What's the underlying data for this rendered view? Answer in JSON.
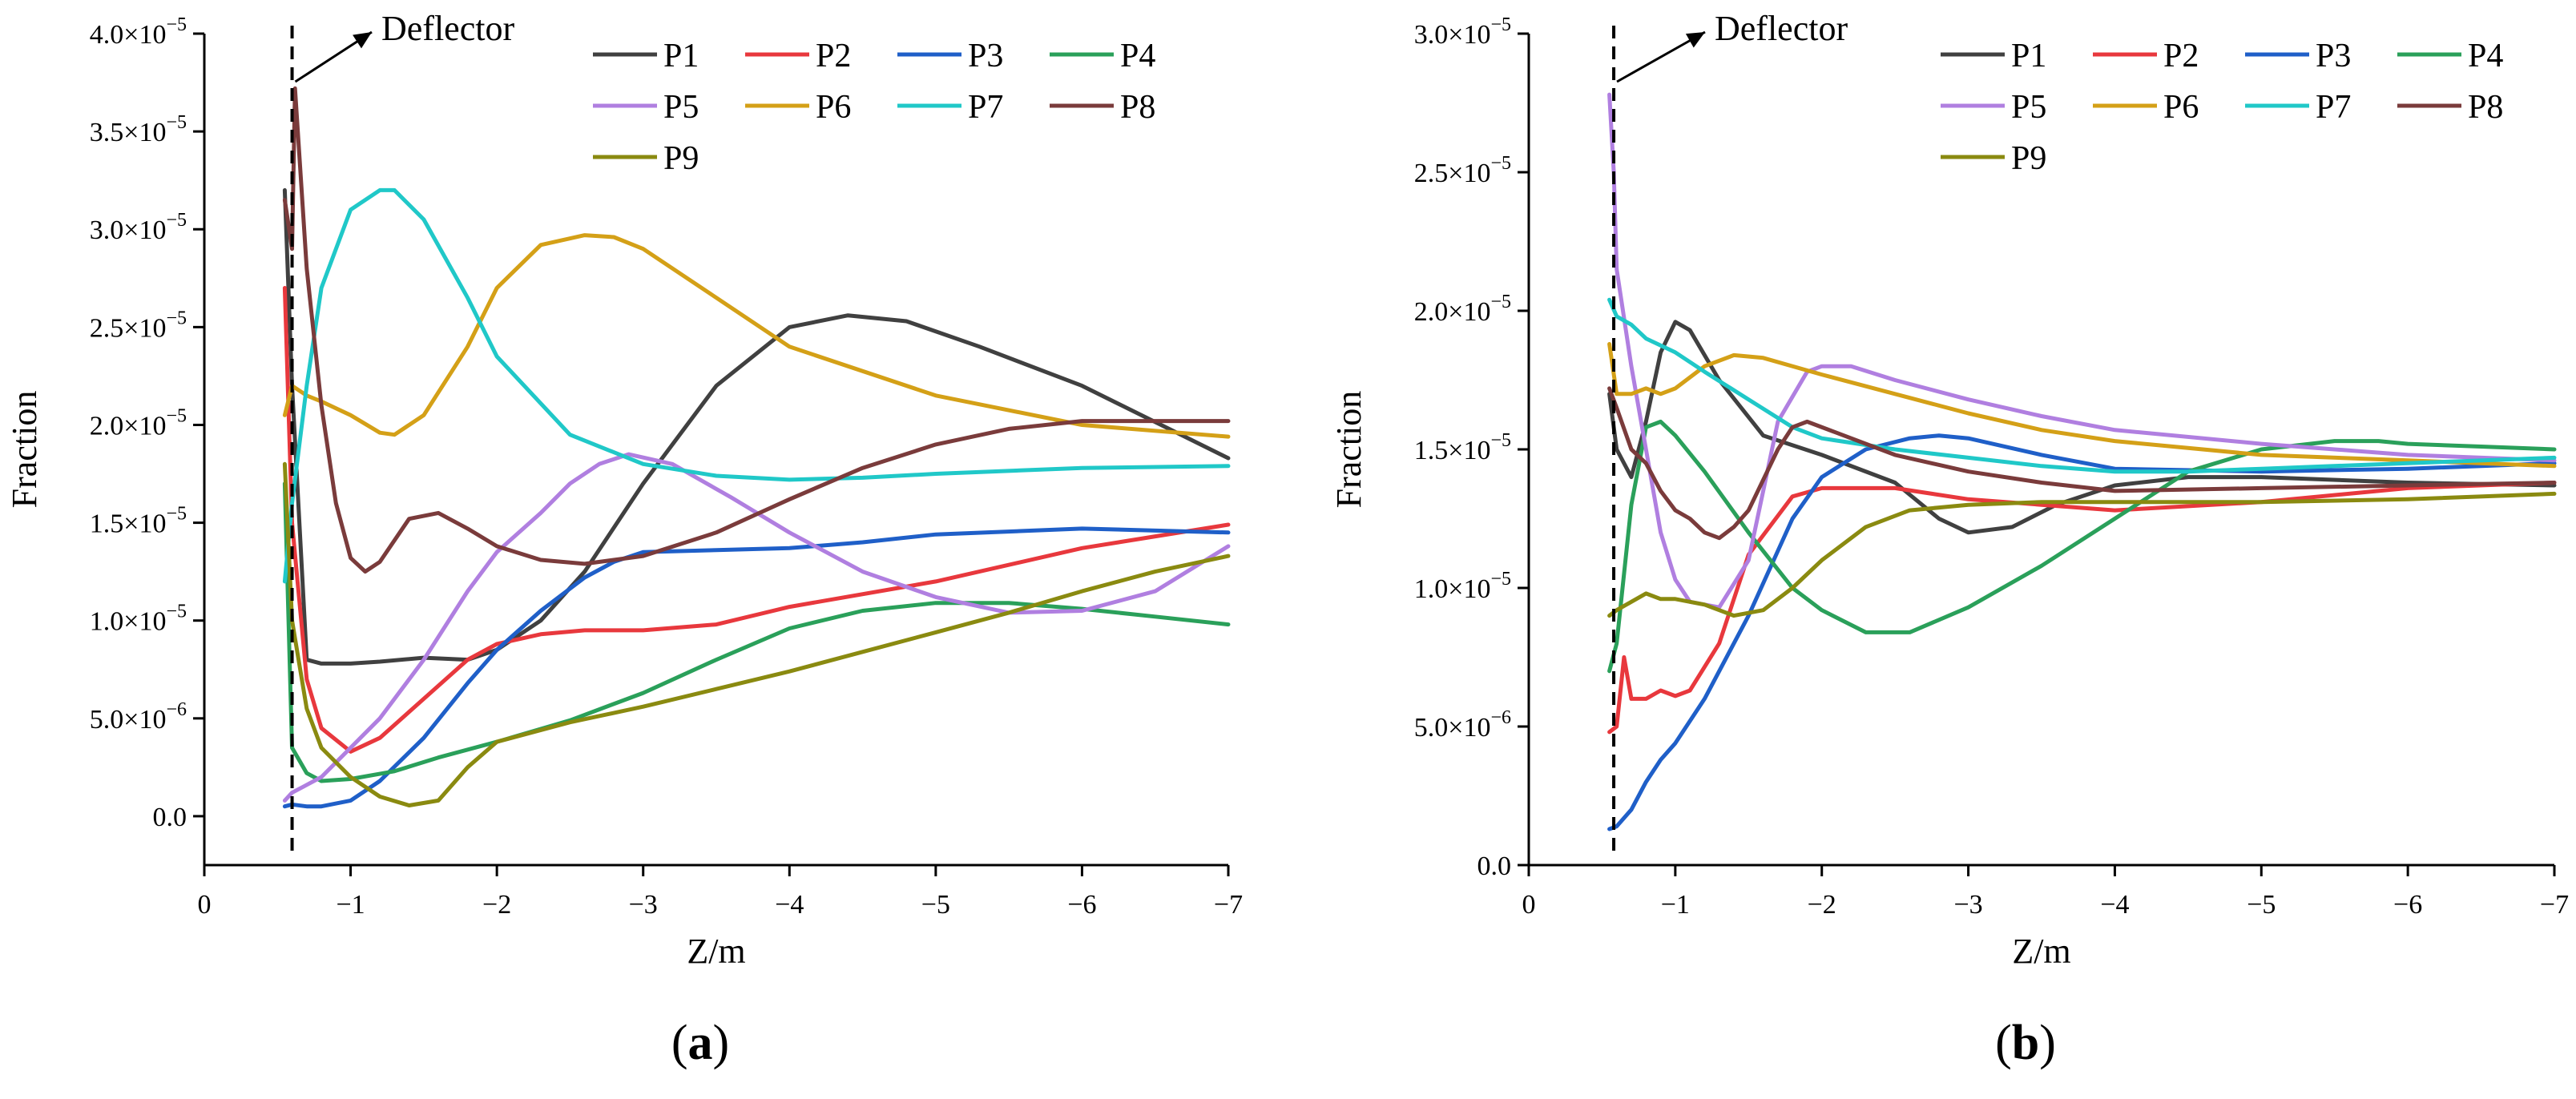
{
  "chart_data": [
    {
      "type": "line",
      "panel_label": {
        "open": "(",
        "letter": "a",
        "close": ")"
      },
      "xlabel": "Z/m",
      "ylabel": "Fraction",
      "xlim": [
        0,
        -7
      ],
      "ylim": [
        -2.5e-06,
        4e-05
      ],
      "x_ticks": [
        0,
        -1,
        -2,
        -3,
        -4,
        -5,
        -6,
        -7
      ],
      "x_tick_labels": [
        "0",
        "−1",
        "−2",
        "−3",
        "−4",
        "−5",
        "−6",
        "−7"
      ],
      "y_ticks": [
        0,
        5e-06,
        1e-05,
        1.5e-05,
        2e-05,
        2.5e-05,
        3e-05,
        3.5e-05,
        4e-05
      ],
      "y_tick_labels": [
        {
          "mant": "0.0",
          "exp": ""
        },
        {
          "mant": "5.0×10",
          "exp": "−6"
        },
        {
          "mant": "1.0×10",
          "exp": "−5"
        },
        {
          "mant": "1.5×10",
          "exp": "−5"
        },
        {
          "mant": "2.0×10",
          "exp": "−5"
        },
        {
          "mant": "2.5×10",
          "exp": "−5"
        },
        {
          "mant": "3.0×10",
          "exp": "−5"
        },
        {
          "mant": "3.5×10",
          "exp": "−5"
        },
        {
          "mant": "4.0×10",
          "exp": "−5"
        }
      ],
      "annotation": {
        "text": "Deflector",
        "x": -0.6
      },
      "legend": "top-right",
      "series": [
        {
          "name": "P1",
          "color": "#404040",
          "x": [
            -0.55,
            -0.6,
            -0.7,
            -0.8,
            -1.0,
            -1.2,
            -1.5,
            -1.8,
            -2.0,
            -2.3,
            -2.6,
            -3.0,
            -3.5,
            -4.0,
            -4.4,
            -4.8,
            -5.3,
            -6.0,
            -7.0
          ],
          "y": [
            3.2e-05,
            2.2e-05,
            8e-06,
            7.8e-06,
            7.8e-06,
            7.9e-06,
            8.1e-06,
            8e-06,
            8.5e-06,
            1e-05,
            1.25e-05,
            1.7e-05,
            2.2e-05,
            2.5e-05,
            2.56e-05,
            2.53e-05,
            2.4e-05,
            2.2e-05,
            1.83e-05
          ]
        },
        {
          "name": "P2",
          "color": "#e8383d",
          "x": [
            -0.55,
            -0.6,
            -0.7,
            -0.8,
            -1.0,
            -1.2,
            -1.5,
            -1.8,
            -2.0,
            -2.3,
            -2.6,
            -3.0,
            -3.5,
            -4.0,
            -5.0,
            -6.0,
            -7.0
          ],
          "y": [
            2.7e-05,
            1.5e-05,
            7e-06,
            4.5e-06,
            3.3e-06,
            4e-06,
            6e-06,
            8e-06,
            8.8e-06,
            9.3e-06,
            9.5e-06,
            9.5e-06,
            9.8e-06,
            1.07e-05,
            1.2e-05,
            1.37e-05,
            1.49e-05
          ]
        },
        {
          "name": "P3",
          "color": "#1f5fc8",
          "x": [
            -0.55,
            -0.6,
            -0.7,
            -0.8,
            -1.0,
            -1.2,
            -1.5,
            -1.8,
            -2.0,
            -2.3,
            -2.6,
            -2.8,
            -3.0,
            -3.5,
            -4.0,
            -4.5,
            -5.0,
            -6.0,
            -7.0
          ],
          "y": [
            5e-07,
            6e-07,
            5e-07,
            5e-07,
            8e-07,
            1.8e-06,
            4e-06,
            6.8e-06,
            8.5e-06,
            1.05e-05,
            1.22e-05,
            1.3e-05,
            1.35e-05,
            1.36e-05,
            1.37e-05,
            1.4e-05,
            1.44e-05,
            1.47e-05,
            1.45e-05
          ]
        },
        {
          "name": "P4",
          "color": "#2aa05a",
          "x": [
            -0.55,
            -0.6,
            -0.7,
            -0.8,
            -1.0,
            -1.3,
            -1.6,
            -2.0,
            -2.5,
            -3.0,
            -3.5,
            -4.0,
            -4.5,
            -5.0,
            -5.5,
            -6.0,
            -6.5,
            -7.0
          ],
          "y": [
            1.7e-05,
            3.5e-06,
            2.2e-06,
            1.8e-06,
            1.9e-06,
            2.3e-06,
            3e-06,
            3.8e-06,
            4.9e-06,
            6.3e-06,
            8e-06,
            9.6e-06,
            1.05e-05,
            1.09e-05,
            1.09e-05,
            1.06e-05,
            1.02e-05,
            9.8e-06
          ]
        },
        {
          "name": "P5",
          "color": "#b07fe0",
          "x": [
            -0.55,
            -0.6,
            -0.8,
            -1.0,
            -1.2,
            -1.5,
            -1.8,
            -2.0,
            -2.3,
            -2.5,
            -2.7,
            -2.9,
            -3.2,
            -3.6,
            -4.0,
            -4.5,
            -5.0,
            -5.5,
            -6.0,
            -6.5,
            -7.0
          ],
          "y": [
            8e-07,
            1.2e-06,
            2e-06,
            3.5e-06,
            5e-06,
            8e-06,
            1.15e-05,
            1.35e-05,
            1.55e-05,
            1.7e-05,
            1.8e-05,
            1.85e-05,
            1.8e-05,
            1.63e-05,
            1.45e-05,
            1.25e-05,
            1.12e-05,
            1.04e-05,
            1.05e-05,
            1.15e-05,
            1.38e-05
          ]
        },
        {
          "name": "P6",
          "color": "#d4a017",
          "x": [
            -0.55,
            -0.6,
            -0.7,
            -0.8,
            -1.0,
            -1.2,
            -1.3,
            -1.5,
            -1.8,
            -2.0,
            -2.3,
            -2.6,
            -2.8,
            -3.0,
            -3.5,
            -4.0,
            -5.0,
            -6.0,
            -7.0
          ],
          "y": [
            2.05e-05,
            2.2e-05,
            2.15e-05,
            2.12e-05,
            2.05e-05,
            1.96e-05,
            1.95e-05,
            2.05e-05,
            2.4e-05,
            2.7e-05,
            2.92e-05,
            2.97e-05,
            2.96e-05,
            2.9e-05,
            2.65e-05,
            2.4e-05,
            2.15e-05,
            2e-05,
            1.94e-05
          ]
        },
        {
          "name": "P7",
          "color": "#20c8c8",
          "x": [
            -0.55,
            -0.6,
            -0.7,
            -0.8,
            -1.0,
            -1.2,
            -1.3,
            -1.5,
            -1.8,
            -2.0,
            -2.5,
            -3.0,
            -3.5,
            -4.0,
            -4.5,
            -5.0,
            -6.0,
            -7.0
          ],
          "y": [
            1.2e-05,
            1.6e-05,
            2.2e-05,
            2.7e-05,
            3.1e-05,
            3.2e-05,
            3.2e-05,
            3.05e-05,
            2.65e-05,
            2.35e-05,
            1.95e-05,
            1.8e-05,
            1.74e-05,
            1.72e-05,
            1.73e-05,
            1.75e-05,
            1.78e-05,
            1.79e-05
          ]
        },
        {
          "name": "P8",
          "color": "#7a3b3b",
          "x": [
            -0.55,
            -0.6,
            -0.62,
            -0.7,
            -0.8,
            -0.9,
            -1.0,
            -1.1,
            -1.2,
            -1.4,
            -1.6,
            -1.8,
            -2.0,
            -2.3,
            -2.6,
            -3.0,
            -3.5,
            -4.0,
            -4.5,
            -5.0,
            -5.5,
            -6.0,
            -7.0
          ],
          "y": [
            3.15e-05,
            2.9e-05,
            3.72e-05,
            2.8e-05,
            2.1e-05,
            1.6e-05,
            1.32e-05,
            1.25e-05,
            1.3e-05,
            1.52e-05,
            1.55e-05,
            1.47e-05,
            1.38e-05,
            1.31e-05,
            1.29e-05,
            1.33e-05,
            1.45e-05,
            1.62e-05,
            1.78e-05,
            1.9e-05,
            1.98e-05,
            2.02e-05,
            2.02e-05
          ]
        },
        {
          "name": "P9",
          "color": "#8a8a10",
          "x": [
            -0.55,
            -0.6,
            -0.7,
            -0.8,
            -1.0,
            -1.2,
            -1.4,
            -1.6,
            -1.8,
            -2.0,
            -2.5,
            -3.0,
            -3.5,
            -4.0,
            -4.5,
            -5.0,
            -5.5,
            -6.0,
            -6.5,
            -7.0
          ],
          "y": [
            1.8e-05,
            1e-05,
            5.5e-06,
            3.5e-06,
            2e-06,
            1e-06,
            5.5e-07,
            8e-07,
            2.5e-06,
            3.8e-06,
            4.8e-06,
            5.6e-06,
            6.5e-06,
            7.4e-06,
            8.4e-06,
            9.4e-06,
            1.04e-05,
            1.15e-05,
            1.25e-05,
            1.33e-05
          ]
        }
      ]
    },
    {
      "type": "line",
      "panel_label": {
        "open": "(",
        "letter": "b",
        "close": ")"
      },
      "xlabel": "Z/m",
      "ylabel": "Fraction",
      "xlim": [
        0,
        -7
      ],
      "ylim": [
        0,
        3e-05
      ],
      "x_ticks": [
        0,
        -1,
        -2,
        -3,
        -4,
        -5,
        -6,
        -7
      ],
      "x_tick_labels": [
        "0",
        "−1",
        "−2",
        "−3",
        "−4",
        "−5",
        "−6",
        "−7"
      ],
      "y_ticks": [
        0,
        5e-06,
        1e-05,
        1.5e-05,
        2e-05,
        2.5e-05,
        3e-05
      ],
      "y_tick_labels": [
        {
          "mant": "0.0",
          "exp": ""
        },
        {
          "mant": "5.0×10",
          "exp": "−6"
        },
        {
          "mant": "1.0×10",
          "exp": "−5"
        },
        {
          "mant": "1.5×10",
          "exp": "−5"
        },
        {
          "mant": "2.0×10",
          "exp": "−5"
        },
        {
          "mant": "2.5×10",
          "exp": "−5"
        },
        {
          "mant": "3.0×10",
          "exp": "−5"
        }
      ],
      "annotation": {
        "text": "Deflector",
        "x": -0.58
      },
      "legend": "top-right",
      "series": [
        {
          "name": "P1",
          "color": "#404040",
          "x": [
            -0.55,
            -0.6,
            -0.7,
            -0.8,
            -0.9,
            -1.0,
            -1.1,
            -1.3,
            -1.6,
            -2.0,
            -2.5,
            -2.8,
            -3.0,
            -3.3,
            -3.6,
            -4.0,
            -4.5,
            -5.0,
            -6.0,
            -7.0
          ],
          "y": [
            1.7e-05,
            1.5e-05,
            1.4e-05,
            1.6e-05,
            1.85e-05,
            1.96e-05,
            1.93e-05,
            1.75e-05,
            1.55e-05,
            1.48e-05,
            1.38e-05,
            1.25e-05,
            1.2e-05,
            1.22e-05,
            1.3e-05,
            1.37e-05,
            1.4e-05,
            1.4e-05,
            1.38e-05,
            1.37e-05
          ]
        },
        {
          "name": "P2",
          "color": "#e8383d",
          "x": [
            -0.55,
            -0.6,
            -0.65,
            -0.7,
            -0.8,
            -0.9,
            -1.0,
            -1.1,
            -1.3,
            -1.5,
            -1.8,
            -2.0,
            -2.5,
            -3.0,
            -3.5,
            -4.0,
            -5.0,
            -6.0,
            -7.0
          ],
          "y": [
            4.8e-06,
            5e-06,
            7.5e-06,
            6e-06,
            6e-06,
            6.3e-06,
            6.1e-06,
            6.3e-06,
            8e-06,
            1.12e-05,
            1.33e-05,
            1.36e-05,
            1.36e-05,
            1.32e-05,
            1.3e-05,
            1.28e-05,
            1.31e-05,
            1.36e-05,
            1.38e-05
          ]
        },
        {
          "name": "P3",
          "color": "#1f5fc8",
          "x": [
            -0.55,
            -0.6,
            -0.7,
            -0.8,
            -0.9,
            -1.0,
            -1.2,
            -1.5,
            -1.8,
            -2.0,
            -2.3,
            -2.6,
            -2.8,
            -3.0,
            -3.5,
            -4.0,
            -5.0,
            -6.0,
            -7.0
          ],
          "y": [
            1.3e-06,
            1.4e-06,
            2e-06,
            3e-06,
            3.8e-06,
            4.4e-06,
            6e-06,
            9e-06,
            1.25e-05,
            1.4e-05,
            1.5e-05,
            1.54e-05,
            1.55e-05,
            1.54e-05,
            1.48e-05,
            1.43e-05,
            1.42e-05,
            1.43e-05,
            1.45e-05
          ]
        },
        {
          "name": "P4",
          "color": "#2aa05a",
          "x": [
            -0.55,
            -0.6,
            -0.7,
            -0.8,
            -0.9,
            -1.0,
            -1.2,
            -1.5,
            -1.8,
            -2.0,
            -2.3,
            -2.6,
            -3.0,
            -3.5,
            -4.0,
            -4.5,
            -5.0,
            -5.5,
            -5.8,
            -6.0,
            -6.5,
            -7.0
          ],
          "y": [
            7e-06,
            8e-06,
            1.3e-05,
            1.58e-05,
            1.6e-05,
            1.55e-05,
            1.42e-05,
            1.2e-05,
            1e-05,
            9.2e-06,
            8.4e-06,
            8.4e-06,
            9.3e-06,
            1.08e-05,
            1.25e-05,
            1.42e-05,
            1.5e-05,
            1.53e-05,
            1.53e-05,
            1.52e-05,
            1.51e-05,
            1.5e-05
          ]
        },
        {
          "name": "P5",
          "color": "#b07fe0",
          "x": [
            -0.55,
            -0.58,
            -0.6,
            -0.7,
            -0.8,
            -0.9,
            -1.0,
            -1.1,
            -1.3,
            -1.5,
            -1.7,
            -1.9,
            -2.0,
            -2.2,
            -2.5,
            -3.0,
            -3.5,
            -4.0,
            -5.0,
            -6.0,
            -7.0
          ],
          "y": [
            2.78e-05,
            2.5e-05,
            2.15e-05,
            1.8e-05,
            1.5e-05,
            1.2e-05,
            1.03e-05,
            9.5e-06,
            9.3e-06,
            1.1e-05,
            1.6e-05,
            1.78e-05,
            1.8e-05,
            1.8e-05,
            1.75e-05,
            1.68e-05,
            1.62e-05,
            1.57e-05,
            1.52e-05,
            1.48e-05,
            1.46e-05
          ]
        },
        {
          "name": "P6",
          "color": "#d4a017",
          "x": [
            -0.55,
            -0.6,
            -0.7,
            -0.8,
            -0.9,
            -1.0,
            -1.2,
            -1.4,
            -1.6,
            -2.0,
            -2.5,
            -3.0,
            -3.5,
            -4.0,
            -5.0,
            -6.0,
            -7.0
          ],
          "y": [
            1.88e-05,
            1.7e-05,
            1.7e-05,
            1.72e-05,
            1.7e-05,
            1.72e-05,
            1.8e-05,
            1.84e-05,
            1.83e-05,
            1.77e-05,
            1.7e-05,
            1.63e-05,
            1.57e-05,
            1.53e-05,
            1.48e-05,
            1.46e-05,
            1.44e-05
          ]
        },
        {
          "name": "P7",
          "color": "#20c8c8",
          "x": [
            -0.55,
            -0.6,
            -0.7,
            -0.8,
            -1.0,
            -1.2,
            -1.5,
            -1.8,
            -2.0,
            -2.5,
            -3.0,
            -3.5,
            -4.0,
            -4.5,
            -5.0,
            -6.0,
            -7.0
          ],
          "y": [
            2.04e-05,
            1.98e-05,
            1.95e-05,
            1.9e-05,
            1.85e-05,
            1.78e-05,
            1.68e-05,
            1.58e-05,
            1.54e-05,
            1.5e-05,
            1.47e-05,
            1.44e-05,
            1.42e-05,
            1.42e-05,
            1.43e-05,
            1.45e-05,
            1.47e-05
          ]
        },
        {
          "name": "P8",
          "color": "#7a3b3b",
          "x": [
            -0.55,
            -0.6,
            -0.7,
            -0.8,
            -0.9,
            -1.0,
            -1.1,
            -1.2,
            -1.3,
            -1.4,
            -1.5,
            -1.7,
            -1.8,
            -1.9,
            -2.1,
            -2.5,
            -3.0,
            -3.5,
            -4.0,
            -5.0,
            -6.0,
            -7.0
          ],
          "y": [
            1.72e-05,
            1.65e-05,
            1.5e-05,
            1.45e-05,
            1.35e-05,
            1.28e-05,
            1.25e-05,
            1.2e-05,
            1.18e-05,
            1.22e-05,
            1.28e-05,
            1.5e-05,
            1.58e-05,
            1.6e-05,
            1.56e-05,
            1.48e-05,
            1.42e-05,
            1.38e-05,
            1.35e-05,
            1.36e-05,
            1.37e-05,
            1.38e-05
          ]
        },
        {
          "name": "P9",
          "color": "#8a8a10",
          "x": [
            -0.55,
            -0.6,
            -0.7,
            -0.8,
            -0.9,
            -1.0,
            -1.1,
            -1.2,
            -1.3,
            -1.4,
            -1.6,
            -1.8,
            -2.0,
            -2.3,
            -2.6,
            -3.0,
            -3.5,
            -4.0,
            -5.0,
            -6.0,
            -7.0
          ],
          "y": [
            9e-06,
            9.2e-06,
            9.5e-06,
            9.8e-06,
            9.6e-06,
            9.6e-06,
            9.5e-06,
            9.4e-06,
            9.2e-06,
            9e-06,
            9.2e-06,
            1e-05,
            1.1e-05,
            1.22e-05,
            1.28e-05,
            1.3e-05,
            1.31e-05,
            1.31e-05,
            1.31e-05,
            1.32e-05,
            1.34e-05
          ]
        }
      ]
    }
  ]
}
